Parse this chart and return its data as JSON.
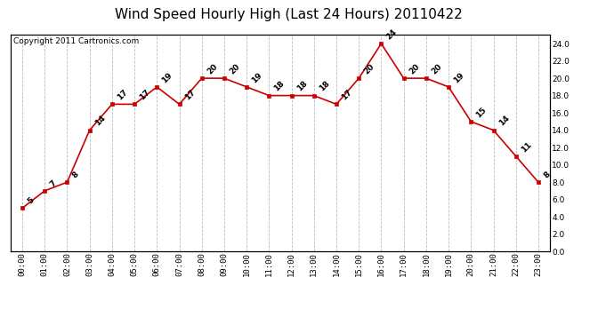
{
  "title": "Wind Speed Hourly High (Last 24 Hours) 20110422",
  "copyright": "Copyright 2011 Cartronics.com",
  "hours": [
    "00:00",
    "01:00",
    "02:00",
    "03:00",
    "04:00",
    "05:00",
    "06:00",
    "07:00",
    "08:00",
    "09:00",
    "10:00",
    "11:00",
    "12:00",
    "13:00",
    "14:00",
    "15:00",
    "16:00",
    "17:00",
    "18:00",
    "19:00",
    "20:00",
    "21:00",
    "22:00",
    "23:00"
  ],
  "values": [
    5,
    7,
    8,
    14,
    17,
    17,
    19,
    17,
    20,
    20,
    19,
    18,
    18,
    18,
    17,
    20,
    24,
    20,
    20,
    19,
    15,
    14,
    11,
    8
  ],
  "line_color": "#cc0000",
  "marker_color": "#cc0000",
  "bg_color": "#ffffff",
  "plot_bg_color": "#ffffff",
  "grid_color": "#bbbbbb",
  "ylim_min": 0.0,
  "ylim_max": 25.0,
  "ytick_step": 2.0,
  "title_fontsize": 11,
  "annotation_fontsize": 6.5,
  "copyright_fontsize": 6.5
}
